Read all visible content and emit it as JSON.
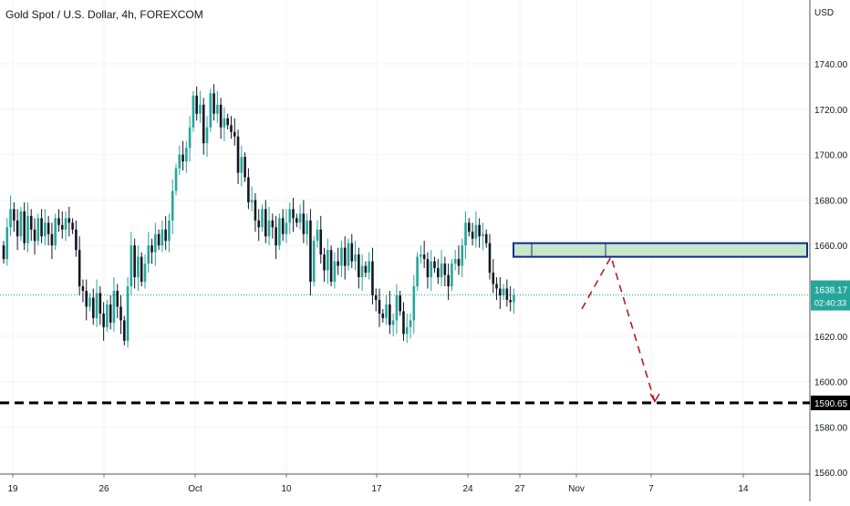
{
  "symbol_title": "Gold Spot / U.S. Dollar, 4h, FOREXCOM",
  "colors": {
    "background": "#ffffff",
    "grid": "#f0f3fa",
    "up": "#26a69a",
    "down": "#131722",
    "zone_fill": "#c8e6c9",
    "zone_border": "#0d2d8c",
    "projection": "#b71c1c",
    "support": "#000000",
    "price_badge": "#26a69a",
    "axis_text": "#131722"
  },
  "chart_data": {
    "type": "candlestick",
    "title": "Gold Spot / U.S. Dollar, 4h, FOREXCOM",
    "currency_label": "USD",
    "y_ticks": [
      "1740.00",
      "1720.00",
      "1700.00",
      "1680.00",
      "1660.00",
      "1620.00",
      "1600.00",
      "1580.00",
      "1560.00"
    ],
    "ylim": [
      1558,
      1760
    ],
    "x_ticks": [
      "19",
      "26",
      "Oct",
      "10",
      "17",
      "24",
      "27",
      "Nov",
      "7",
      "14"
    ],
    "grid": true,
    "current_price": "1638.17",
    "countdown": "02:40:33",
    "support_level": "1590.65",
    "resistance_zone": [
      1655,
      1661
    ],
    "projection_path": [
      1632,
      1655,
      1591
    ],
    "closes": [
      1654,
      1668,
      1676,
      1671,
      1664,
      1675,
      1661,
      1673,
      1667,
      1662,
      1672,
      1664,
      1670,
      1665,
      1660,
      1672,
      1669,
      1667,
      1672,
      1670,
      1667,
      1658,
      1642,
      1640,
      1633,
      1637,
      1628,
      1639,
      1630,
      1624,
      1634,
      1626,
      1640,
      1633,
      1627,
      1618,
      1642,
      1660,
      1646,
      1655,
      1644,
      1652,
      1660,
      1657,
      1665,
      1660,
      1667,
      1662,
      1671,
      1684,
      1694,
      1700,
      1697,
      1703,
      1712,
      1726,
      1718,
      1722,
      1705,
      1712,
      1727,
      1718,
      1722,
      1712,
      1716,
      1713,
      1710,
      1708,
      1692,
      1699,
      1690,
      1679,
      1680,
      1671,
      1668,
      1676,
      1664,
      1671,
      1668,
      1660,
      1672,
      1665,
      1670,
      1676,
      1672,
      1670,
      1674,
      1665,
      1671,
      1644,
      1662,
      1667,
      1656,
      1649,
      1658,
      1644,
      1653,
      1651,
      1659,
      1651,
      1661,
      1653,
      1656,
      1646,
      1651,
      1648,
      1653,
      1638,
      1636,
      1630,
      1628,
      1634,
      1625,
      1627,
      1638,
      1631,
      1621,
      1624,
      1627,
      1642,
      1655,
      1656,
      1654,
      1646,
      1653,
      1650,
      1646,
      1652,
      1647,
      1642,
      1652,
      1654,
      1651,
      1660,
      1670,
      1666,
      1663,
      1669,
      1664,
      1665,
      1661,
      1648,
      1643,
      1641,
      1638,
      1641,
      1636,
      1635,
      1638
    ]
  }
}
